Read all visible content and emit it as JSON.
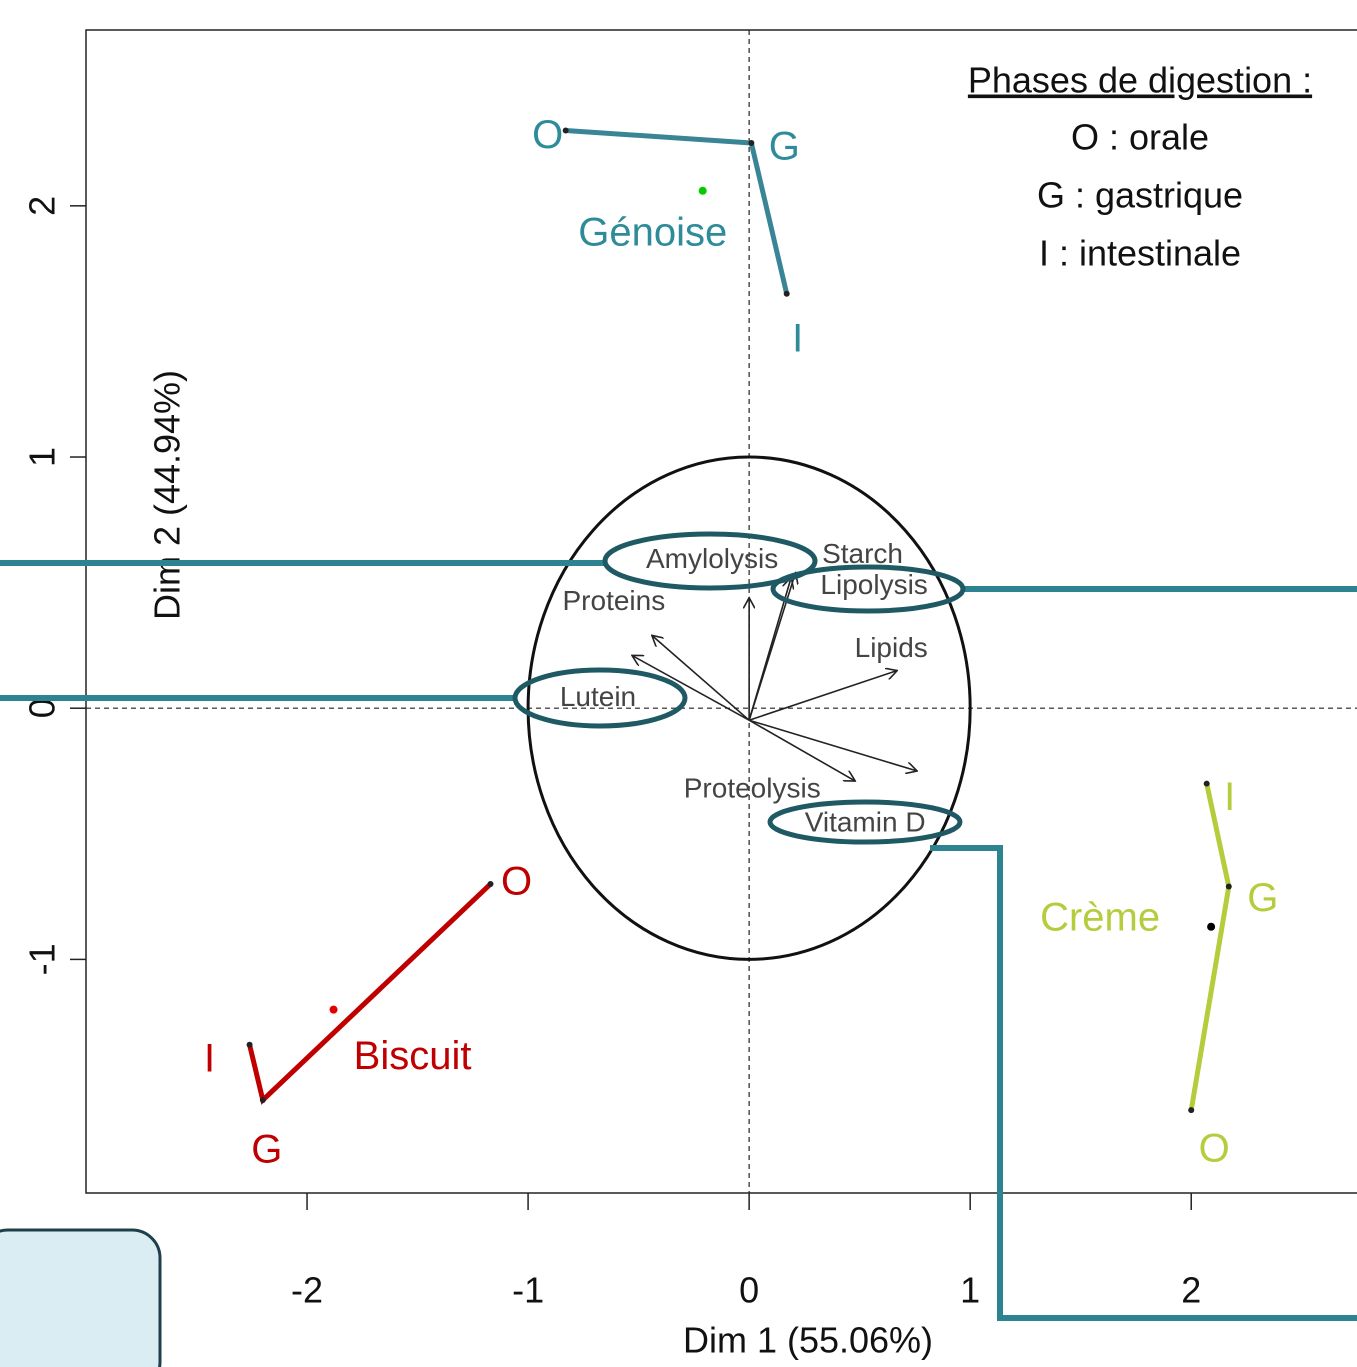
{
  "chart_data": {
    "type": "biplot",
    "xlabel": "Dim 1 (55.06%)",
    "ylabel": "Dim 2 (44.94%)",
    "xlim": [
      -3.0,
      2.75
    ],
    "ylim": [
      -1.93,
      2.7
    ],
    "xticks": [
      -2,
      -1,
      0,
      1,
      2
    ],
    "yticks": [
      -1,
      0,
      1,
      2
    ],
    "legend": {
      "title": "Phases de digestion :",
      "items": [
        "O : orale",
        "G : gastrique",
        "I : intestinale"
      ]
    },
    "groups": [
      {
        "name": "Génoise",
        "color": "#2e8b9a",
        "line_color": "#3a8595",
        "centroid_color": "#00cc00",
        "phases": [
          "O",
          "G",
          "I"
        ],
        "x": [
          -0.83,
          0.01,
          0.17
        ],
        "y": [
          2.3,
          2.25,
          1.65
        ],
        "centroid": {
          "x": -0.21,
          "y": 2.06
        }
      },
      {
        "name": "Biscuit",
        "color": "#c00000",
        "line_color": "#c00000",
        "centroid_color": "#e00000",
        "phases": [
          "O",
          "G",
          "I"
        ],
        "x": [
          -1.17,
          -2.2,
          -2.26
        ],
        "y": [
          -0.7,
          -1.56,
          -1.34
        ],
        "centroid": {
          "x": -1.88,
          "y": -1.2
        }
      },
      {
        "name": "Crème",
        "color": "#b5cc3c",
        "line_color": "#b5cc3c",
        "centroid_color": "#000000",
        "phases": [
          "O",
          "G",
          "I"
        ],
        "x": [
          2.0,
          2.17,
          2.07
        ],
        "y": [
          -1.6,
          -0.71,
          -0.3
        ],
        "centroid": {
          "x": 2.09,
          "y": -0.87
        }
      }
    ],
    "variables": [
      {
        "name": "Amylolysis",
        "x": 0.0,
        "y": 0.44
      },
      {
        "name": "Starch",
        "x": 0.21,
        "y": 0.54
      },
      {
        "name": "Lipolysis",
        "x": 0.19,
        "y": 0.52
      },
      {
        "name": "Proteins",
        "x": -0.44,
        "y": 0.29
      },
      {
        "name": "Lutein",
        "x": -0.53,
        "y": 0.21
      },
      {
        "name": "Lipids",
        "x": 0.67,
        "y": 0.15
      },
      {
        "name": "Proteolysis",
        "x": 0.48,
        "y": -0.29
      },
      {
        "name": "Vitamin D",
        "x": 0.76,
        "y": -0.25
      }
    ]
  }
}
